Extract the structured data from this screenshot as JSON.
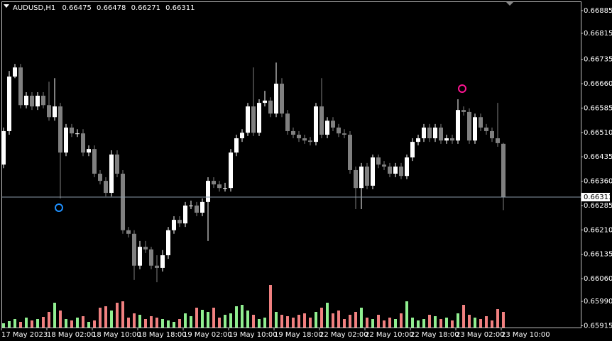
{
  "chart_data": {
    "type": "candlestick",
    "title": "AUDUSD,H1",
    "categories": [
      "17 May 2023",
      null,
      null,
      null,
      null,
      null,
      null,
      null,
      "18 May 02:00",
      null,
      null,
      null,
      null,
      null,
      null,
      null,
      "18 May 10:00",
      null,
      null,
      null,
      null,
      null,
      null,
      null,
      "18 May 18:00",
      null,
      null,
      null,
      null,
      null,
      null,
      null,
      "19 May 02:00",
      null,
      null,
      null,
      null,
      null,
      null,
      null,
      "19 May 10:00",
      null,
      null,
      null,
      null,
      null,
      null,
      null,
      "19 May 18:00",
      null,
      null,
      null,
      null,
      null,
      null,
      null,
      "22 May 02:00",
      null,
      null,
      null,
      null,
      null,
      null,
      null,
      "22 May 10:00",
      null,
      null,
      null,
      null,
      null,
      null,
      null,
      "22 May 18:00",
      null,
      null,
      null,
      null,
      null,
      null,
      null,
      "23 May 02:00",
      null,
      null,
      null,
      null,
      null,
      null,
      null,
      "23 May 10:00"
    ],
    "open": [
      0.66411,
      0.66514,
      0.66682,
      0.6671,
      0.66594,
      0.66623,
      0.6659,
      0.66623,
      0.66594,
      0.66557,
      0.6659,
      0.66448,
      0.66525,
      0.66507,
      0.66507,
      0.66448,
      0.66459,
      0.66383,
      0.66361,
      0.66324,
      0.66442,
      0.66383,
      0.66209,
      0.66198,
      0.661,
      0.66158,
      0.6615,
      0.661,
      0.66093,
      0.66132,
      0.66209,
      0.66241,
      0.6623,
      0.66285,
      0.66285,
      0.66263,
      0.66296,
      0.66361,
      0.6635,
      0.66339,
      0.66339,
      0.66448,
      0.66492,
      0.66509,
      0.6659,
      0.66509,
      0.66601,
      0.66608,
      0.66568,
      0.6666,
      0.66568,
      0.66514,
      0.66503,
      0.66492,
      0.66485,
      0.66481,
      0.6659,
      0.66503,
      0.66546,
      0.66525,
      0.66507,
      0.66503,
      0.66394,
      0.66339,
      0.66405,
      0.66346,
      0.66433,
      0.66411,
      0.66405,
      0.66383,
      0.66405,
      0.66376,
      0.66433,
      0.66481,
      0.66492,
      0.66525,
      0.66492,
      0.66525,
      0.66485,
      0.66492,
      0.66485,
      0.66579,
      0.66573,
      0.66485,
      0.66557,
      0.66525,
      0.66514,
      0.66492,
      0.66475
    ],
    "high": [
      0.66525,
      0.66699,
      0.66721,
      0.66721,
      0.66634,
      0.66634,
      0.66634,
      0.66634,
      0.66666,
      0.66677,
      0.66601,
      0.66536,
      0.66536,
      0.6652,
      0.6652,
      0.6647,
      0.6647,
      0.66394,
      0.66372,
      0.66455,
      0.66455,
      0.66394,
      0.66219,
      0.66209,
      0.66176,
      0.66176,
      0.66158,
      0.66132,
      0.66148,
      0.66219,
      0.66252,
      0.66252,
      0.66296,
      0.663,
      0.66296,
      0.66307,
      0.66372,
      0.66372,
      0.66361,
      0.66355,
      0.66459,
      0.66503,
      0.6652,
      0.66601,
      0.6671,
      0.66612,
      0.66638,
      0.66618,
      0.66725,
      0.66677,
      0.66579,
      0.66525,
      0.66514,
      0.66503,
      0.66496,
      0.66601,
      0.66677,
      0.66557,
      0.66557,
      0.66536,
      0.6652,
      0.66514,
      0.66405,
      0.66416,
      0.66416,
      0.66442,
      0.66442,
      0.66422,
      0.66416,
      0.66416,
      0.66416,
      0.66442,
      0.66492,
      0.66503,
      0.66536,
      0.66536,
      0.66536,
      0.66536,
      0.66503,
      0.66503,
      0.66612,
      0.6659,
      0.66584,
      0.66568,
      0.66568,
      0.66536,
      0.66525,
      0.66601,
      0.66478
    ],
    "low": [
      0.664,
      0.66503,
      0.66677,
      0.66584,
      0.66584,
      0.66579,
      0.66579,
      0.66584,
      0.66546,
      0.66546,
      0.66307,
      0.66437,
      0.66496,
      0.66496,
      0.66437,
      0.66437,
      0.66372,
      0.6635,
      0.66313,
      0.66313,
      0.66372,
      0.66198,
      0.66187,
      0.66056,
      0.66089,
      0.66139,
      0.66089,
      0.66049,
      0.66082,
      0.66121,
      0.66198,
      0.66219,
      0.66219,
      0.66274,
      0.66252,
      0.66252,
      0.66176,
      0.66339,
      0.66328,
      0.66328,
      0.66328,
      0.66437,
      0.66481,
      0.66499,
      0.66499,
      0.66499,
      0.6659,
      0.66557,
      0.66557,
      0.66557,
      0.66503,
      0.66492,
      0.66481,
      0.66475,
      0.6647,
      0.6647,
      0.66492,
      0.66492,
      0.66514,
      0.66496,
      0.66492,
      0.66383,
      0.66274,
      0.66274,
      0.66335,
      0.66335,
      0.664,
      0.66394,
      0.66372,
      0.66372,
      0.66366,
      0.66366,
      0.66422,
      0.6647,
      0.66481,
      0.66481,
      0.66481,
      0.66475,
      0.66475,
      0.66475,
      0.66475,
      0.66562,
      0.66475,
      0.66475,
      0.66514,
      0.66503,
      0.66481,
      0.66466,
      0.66271
    ],
    "close": [
      0.66514,
      0.66682,
      0.6671,
      0.66594,
      0.66623,
      0.6659,
      0.66623,
      0.66594,
      0.66557,
      0.6659,
      0.66448,
      0.66525,
      0.66507,
      0.66507,
      0.66448,
      0.66459,
      0.66383,
      0.66361,
      0.66324,
      0.66442,
      0.66383,
      0.66209,
      0.66198,
      0.661,
      0.66158,
      0.6615,
      0.661,
      0.66093,
      0.66132,
      0.66209,
      0.66241,
      0.6623,
      0.66285,
      0.66285,
      0.66263,
      0.66296,
      0.66361,
      0.6635,
      0.66339,
      0.66339,
      0.66448,
      0.66492,
      0.66509,
      0.6659,
      0.66509,
      0.66601,
      0.66608,
      0.66568,
      0.6666,
      0.66568,
      0.66514,
      0.66503,
      0.66492,
      0.66485,
      0.66481,
      0.6659,
      0.66503,
      0.66546,
      0.66525,
      0.66507,
      0.66503,
      0.66394,
      0.66339,
      0.66405,
      0.66346,
      0.66433,
      0.66411,
      0.66405,
      0.66383,
      0.66405,
      0.66376,
      0.66433,
      0.66481,
      0.66492,
      0.66525,
      0.66492,
      0.66525,
      0.66485,
      0.66492,
      0.66485,
      0.66579,
      0.66573,
      0.66485,
      0.66557,
      0.66525,
      0.66514,
      0.66492,
      0.66477,
      0.66311
    ],
    "volume": [
      6,
      9,
      12,
      8,
      14,
      10,
      12,
      15,
      22,
      35,
      24,
      12,
      10,
      14,
      16,
      8,
      10,
      28,
      30,
      24,
      35,
      37,
      14,
      20,
      18,
      12,
      16,
      14,
      12,
      10,
      8,
      12,
      20,
      16,
      28,
      25,
      22,
      28,
      14,
      18,
      20,
      30,
      32,
      24,
      18,
      12,
      14,
      60,
      22,
      18,
      16,
      14,
      18,
      20,
      14,
      22,
      28,
      35,
      20,
      24,
      12,
      18,
      22,
      28,
      14,
      12,
      18,
      10,
      14,
      12,
      20,
      37,
      14,
      10,
      12,
      18,
      16,
      12,
      14,
      10,
      20,
      32,
      18,
      14,
      12,
      16,
      10,
      26,
      22
    ],
    "ylim": [
      0.65903,
      0.66911
    ],
    "yticks": [
      0.66885,
      0.66815,
      0.66735,
      {
        "value": 0.6666,
        "label": "0.66660"
      },
      0.66585,
      {
        "value": 0.6651,
        "label": "0.66510"
      },
      0.66435,
      {
        "value": 0.6636,
        "label": "0.66360"
      },
      0.66285,
      {
        "value": 0.6621,
        "label": "0.66210"
      },
      0.66135,
      {
        "value": 0.6606,
        "label": "0.66060"
      },
      {
        "value": 0.6599,
        "label": "0.65990"
      },
      0.65915
    ],
    "up_color": "#ffffff",
    "down_color": "#808080",
    "volume_up_color": "#90ee90",
    "volume_down_color": "#f08080",
    "grid": false
  }
}
